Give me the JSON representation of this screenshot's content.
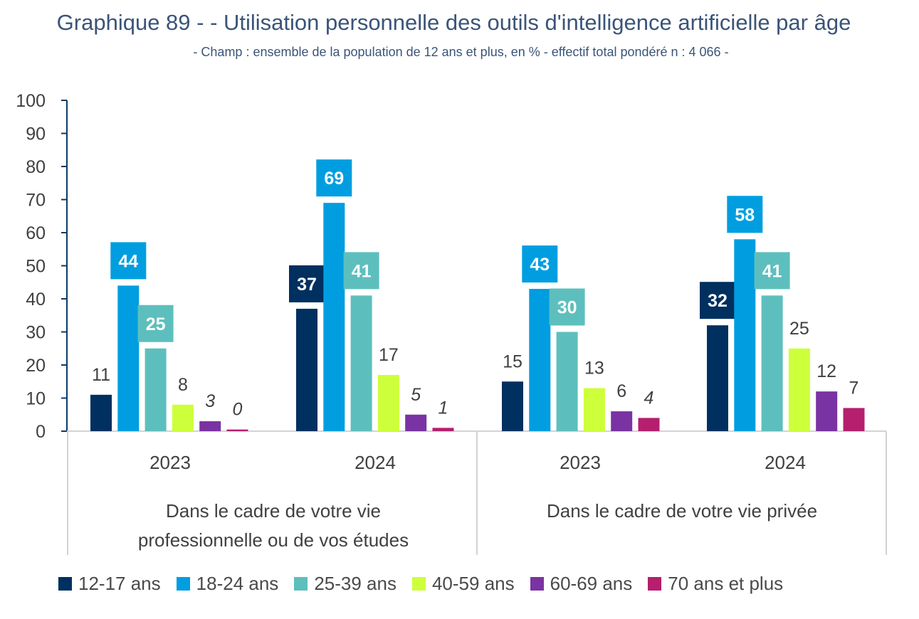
{
  "title": "Graphique 89 - - Utilisation personnelle des outils d'intelligence artificielle par âge",
  "subtitle": "- Champ : ensemble de la population de 12 ans et plus, en % - effectif total pondéré n : 4 066 -",
  "chart_data": {
    "type": "bar",
    "ylim": [
      0,
      100
    ],
    "yticks": [
      "0",
      "10",
      "20",
      "30",
      "40",
      "50",
      "60",
      "70",
      "80",
      "90",
      "100"
    ],
    "groups": [
      {
        "label": "Dans le cadre de votre vie professionnelle ou de vos études",
        "label_lines": [
          "Dans le cadre de votre vie",
          "professionnelle ou de vos études"
        ],
        "years": [
          "2023",
          "2024"
        ]
      },
      {
        "label": "Dans le cadre de votre vie privée",
        "label_lines": [
          "Dans le cadre de votre vie privée"
        ],
        "years": [
          "2023",
          "2024"
        ]
      }
    ],
    "categories": [
      "2023",
      "2024",
      "2023",
      "2024"
    ],
    "series": [
      {
        "name": "12-17 ans",
        "color": "#00305f",
        "values": [
          11,
          37,
          15,
          32
        ],
        "labels": [
          "11",
          "37",
          "15",
          "32"
        ]
      },
      {
        "name": "18-24 ans",
        "color": "#009ee0",
        "values": [
          44,
          69,
          43,
          58
        ],
        "labels": [
          "44",
          "69",
          "43",
          "58"
        ]
      },
      {
        "name": "25-39 ans",
        "color": "#5dbfbd",
        "values": [
          25,
          41,
          30,
          41
        ],
        "labels": [
          "25",
          "41",
          "30",
          "41"
        ]
      },
      {
        "name": "40-59 ans",
        "color": "#cdff3a",
        "values": [
          8,
          17,
          13,
          25
        ],
        "labels": [
          "8",
          "17",
          "13",
          "25"
        ]
      },
      {
        "name": "60-69 ans",
        "color": "#7a33a2",
        "values": [
          3,
          5,
          6,
          12
        ],
        "labels": [
          "3",
          "5",
          "6",
          "12"
        ]
      },
      {
        "name": "70 ans et plus",
        "color": "#b51f6e",
        "values": [
          0.5,
          1,
          4,
          7
        ],
        "labels": [
          "0",
          "1",
          "4",
          "7"
        ]
      }
    ],
    "label_styles": [
      [
        "plain",
        "boxed",
        "boxed",
        "plain",
        "italic",
        "italic"
      ],
      [
        "boxed",
        "boxed",
        "boxed",
        "plain",
        "italic",
        "italic"
      ],
      [
        "plain",
        "boxed",
        "boxed",
        "plain",
        "plain",
        "italic"
      ],
      [
        "boxed",
        "boxed",
        "boxed",
        "plain",
        "plain",
        "plain"
      ]
    ],
    "legend_position": "bottom"
  }
}
